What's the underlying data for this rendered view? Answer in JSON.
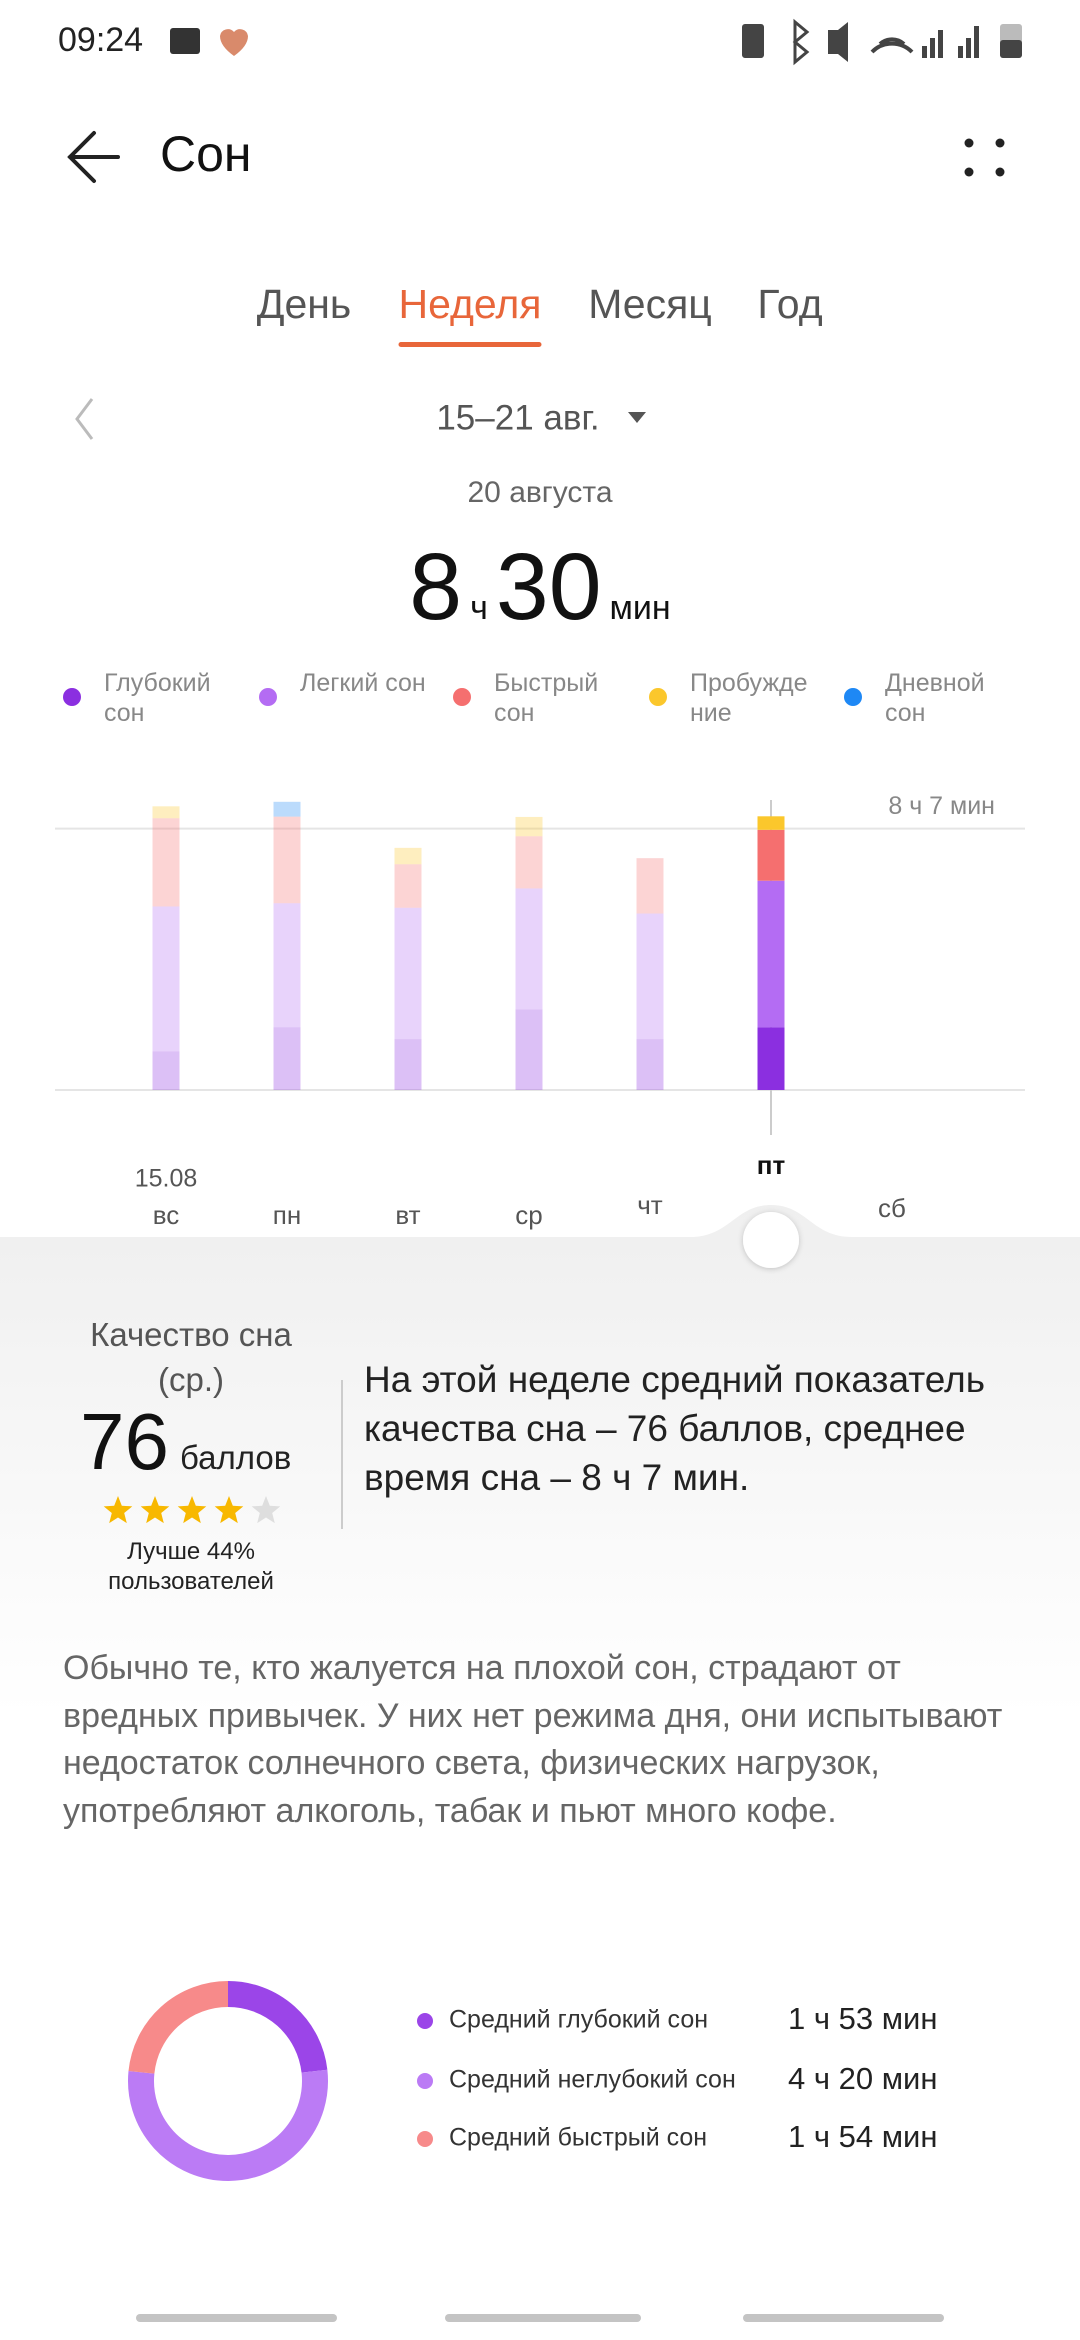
{
  "status_bar": {
    "time": "09:24"
  },
  "header": {
    "title": "Сон"
  },
  "tabs": {
    "items": [
      "День",
      "Неделя",
      "Месяц",
      "Год"
    ],
    "active": 1
  },
  "period": "15–21 авг.",
  "summary": {
    "date": "20 августа",
    "hours": 8,
    "hours_unit": "ч",
    "minutes": 30,
    "minutes_unit": "мин"
  },
  "chart_data": [
    {
      "type": "bar",
      "stacked": true,
      "categories": [
        "вс",
        "пн",
        "вт",
        "ср",
        "чт",
        "пт",
        "сб"
      ],
      "first_date": "15.08",
      "selected": 5,
      "ylim": [
        0,
        10
      ],
      "ref_line": {
        "value": 8.117,
        "label": "8 ч 7 мин"
      },
      "series": [
        {
          "name": "Глубокий сон",
          "color": "#8b2fe0",
          "values": [
            1.2,
            1.95,
            1.58,
            2.5,
            1.58,
            1.95,
            null
          ]
        },
        {
          "name": "Легкий сон",
          "color": "#b46cf3",
          "values": [
            4.5,
            3.85,
            4.08,
            3.76,
            3.9,
            4.55,
            null
          ]
        },
        {
          "name": "Быстрый сон",
          "color": "#f56f6f",
          "values": [
            2.74,
            2.69,
            1.35,
            1.62,
            1.72,
            1.58,
            null
          ]
        },
        {
          "name": "Пробуждение",
          "color": "#fbc72c",
          "values": [
            0.37,
            0,
            0.51,
            0.6,
            0,
            0.42,
            null
          ]
        },
        {
          "name": "Дневной сон",
          "color": "#1e88f5",
          "values": [
            0,
            0.46,
            0,
            0,
            0,
            0,
            null
          ]
        }
      ]
    },
    {
      "type": "pie",
      "donut": true,
      "categories": [
        "Средний глубокий сон",
        "Средний неглубокий сон",
        "Средний быстрый сон"
      ],
      "values": [
        113,
        260,
        114
      ],
      "value_labels": [
        "1 ч 53 мин",
        "4 ч 20 мин",
        "1 ч 54 мин"
      ],
      "colors": [
        "#9b45e8",
        "#bb7bf5",
        "#f78a8a"
      ]
    }
  ],
  "quality": {
    "title": "Качество сна (ср.)",
    "score": 76,
    "unit": "баллов",
    "stars": 4,
    "max_stars": 5,
    "comparison": "Лучше 44% пользователей",
    "text": "На этой неделе средний показатель качества сна – 76 баллов, среднее время сна – 8 ч 7 мин."
  },
  "advice": "Обычно те, кто жалуется на плохой сон, страдают от вредных привычек. У них нет режима дня, они испытывают недостаток солнечного света, физических нагрузок, употребляют алкоголь, табак и пьют много кофе."
}
